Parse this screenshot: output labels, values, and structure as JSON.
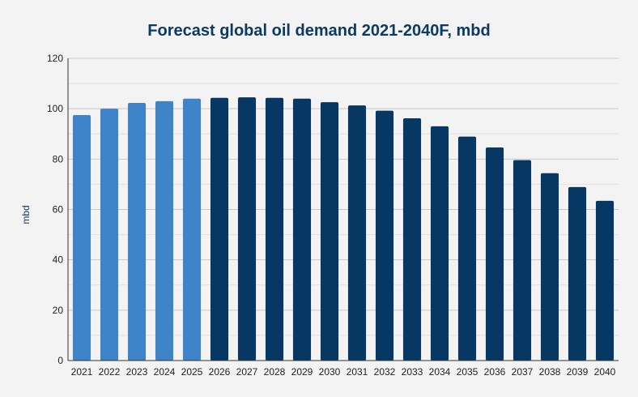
{
  "chart_data": {
    "type": "bar",
    "title": "Forecast global oil demand 2021-2040F, mbd",
    "xlabel": "",
    "ylabel": "mbd",
    "ylim": [
      0,
      120
    ],
    "yticks": [
      0,
      20,
      40,
      60,
      80,
      100,
      120
    ],
    "grid": true,
    "categories": [
      "2021",
      "2022",
      "2023",
      "2024",
      "2025",
      "2026",
      "2027",
      "2028",
      "2029",
      "2030",
      "2031",
      "2032",
      "2033",
      "2034",
      "2035",
      "2036",
      "2037",
      "2038",
      "2039",
      "2040"
    ],
    "values": [
      97.5,
      100,
      102.3,
      103,
      104,
      104.3,
      104.5,
      104.3,
      104,
      102.6,
      101.3,
      99.2,
      96.2,
      93,
      88.9,
      84.6,
      79.6,
      74.4,
      68.9,
      63.4
    ],
    "series_split_index": 5,
    "colors": {
      "historic_bar": "#3f83c9",
      "forecast_bar": "#073763",
      "grid_major": "#c8c8c8",
      "grid_minor": "#e2e2e2",
      "axis": "#333333",
      "background": "#f3f3f3"
    }
  }
}
